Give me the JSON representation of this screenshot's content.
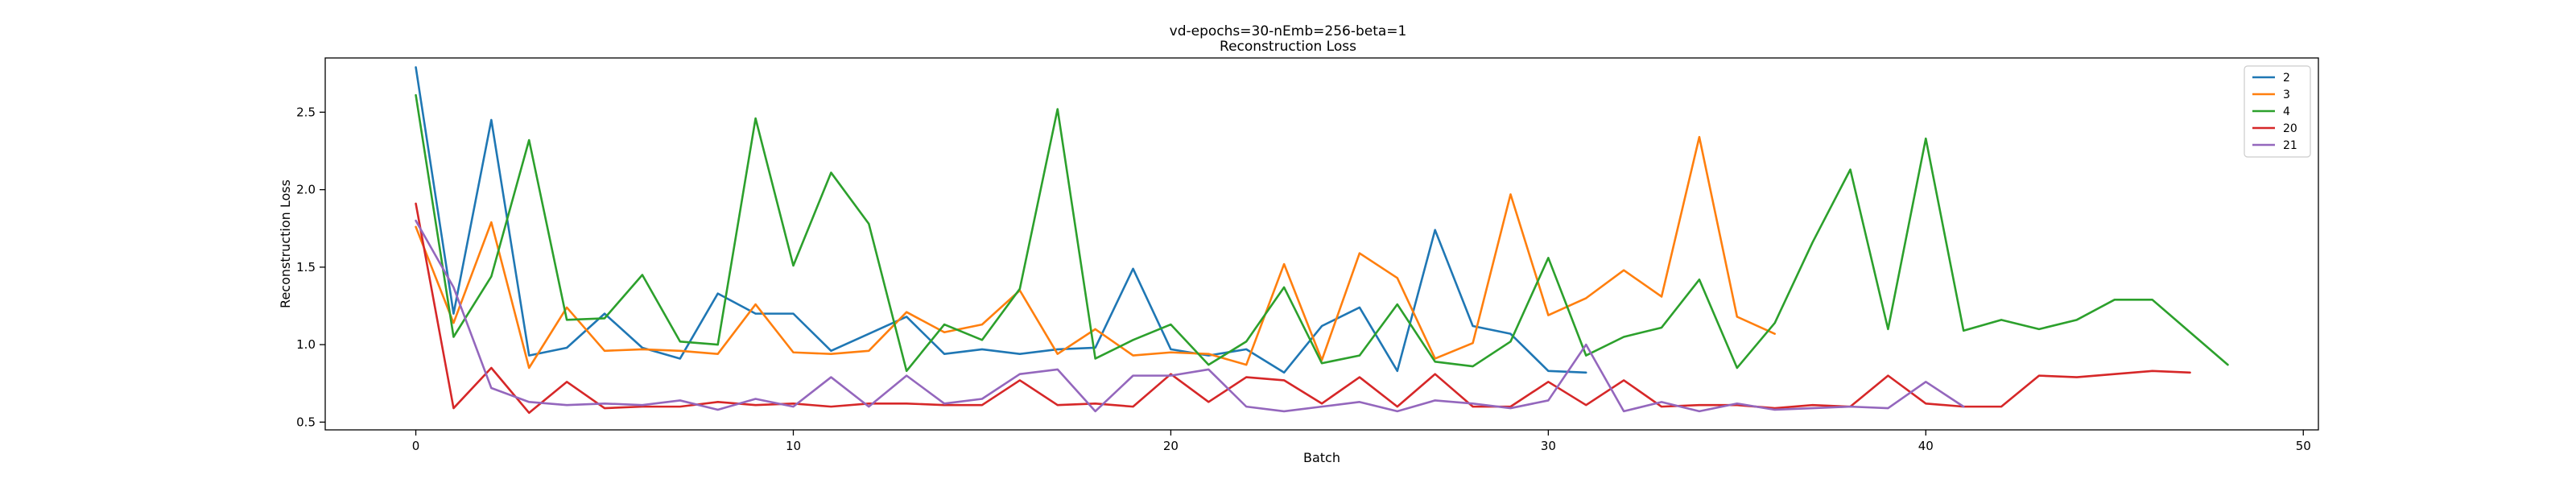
{
  "chart_data": {
    "type": "line",
    "title": "vd-epochs=30-nEmb=256-beta=1",
    "subtitle": "Reconstruction Loss",
    "xlabel": "Batch",
    "ylabel": "Reconstruction Loss",
    "xlim": [
      -2.4,
      50.4
    ],
    "ylim": [
      0.45,
      2.85
    ],
    "xticks": [
      0,
      10,
      20,
      30,
      40,
      50
    ],
    "yticks": [
      0.5,
      1.0,
      1.5,
      2.0,
      2.5
    ],
    "grid": false,
    "legend_position": "top-right",
    "series": [
      {
        "name": "2",
        "color": "#1f77b4",
        "values": [
          2.79,
          1.2,
          2.45,
          0.93,
          0.98,
          1.2,
          0.98,
          0.91,
          1.33,
          1.2,
          1.2,
          0.96,
          1.07,
          1.18,
          0.94,
          0.97,
          0.94,
          0.97,
          0.98,
          1.49,
          0.97,
          0.93,
          0.97,
          0.82,
          1.12,
          1.24,
          0.83,
          1.74,
          1.12,
          1.07,
          0.83,
          0.82
        ]
      },
      {
        "name": "3",
        "color": "#ff7f0e",
        "values": [
          1.76,
          1.14,
          1.79,
          0.85,
          1.24,
          0.96,
          0.97,
          0.96,
          0.94,
          1.26,
          0.95,
          0.94,
          0.96,
          1.21,
          1.08,
          1.13,
          1.35,
          0.94,
          1.1,
          0.93,
          0.95,
          0.94,
          0.87,
          1.52,
          0.9,
          1.59,
          1.43,
          0.91,
          1.01,
          1.97,
          1.19,
          1.3,
          1.48,
          1.31,
          2.34,
          1.18,
          1.07
        ]
      },
      {
        "name": "4",
        "color": "#2ca02c",
        "values": [
          2.61,
          1.05,
          1.44,
          2.32,
          1.16,
          1.17,
          1.45,
          1.02,
          1.0,
          2.46,
          1.51,
          2.11,
          1.78,
          0.83,
          1.13,
          1.03,
          1.36,
          2.52,
          0.91,
          1.03,
          1.13,
          0.87,
          1.02,
          1.37,
          0.88,
          0.93,
          1.26,
          0.89,
          0.86,
          1.02,
          1.56,
          0.93,
          1.05,
          1.11,
          1.42,
          0.85,
          1.14,
          1.66,
          2.13,
          1.1,
          2.33,
          1.09,
          1.16,
          1.1,
          1.16,
          1.29,
          1.29,
          1.08,
          0.87
        ]
      },
      {
        "name": "20",
        "color": "#d62728",
        "values": [
          1.91,
          0.59,
          0.85,
          0.56,
          0.76,
          0.59,
          0.6,
          0.6,
          0.63,
          0.61,
          0.62,
          0.6,
          0.62,
          0.62,
          0.61,
          0.61,
          0.77,
          0.61,
          0.62,
          0.6,
          0.81,
          0.63,
          0.79,
          0.77,
          0.62,
          0.79,
          0.6,
          0.81,
          0.6,
          0.6,
          0.76,
          0.61,
          0.77,
          0.6,
          0.61,
          0.61,
          0.59,
          0.61,
          0.6,
          0.8,
          0.62,
          0.6,
          0.6,
          0.8,
          0.79,
          0.81,
          0.83,
          0.82
        ]
      },
      {
        "name": "21",
        "color": "#9467bd",
        "values": [
          1.8,
          1.37,
          0.72,
          0.63,
          0.61,
          0.62,
          0.61,
          0.64,
          0.58,
          0.65,
          0.6,
          0.79,
          0.6,
          0.8,
          0.62,
          0.65,
          0.81,
          0.84,
          0.57,
          0.8,
          0.8,
          0.84,
          0.6,
          0.57,
          0.6,
          0.63,
          0.57,
          0.64,
          0.62,
          0.59,
          0.64,
          1.0,
          0.57,
          0.63,
          0.57,
          0.62,
          0.58,
          0.59,
          0.6,
          0.59,
          0.76,
          0.6
        ]
      }
    ]
  }
}
